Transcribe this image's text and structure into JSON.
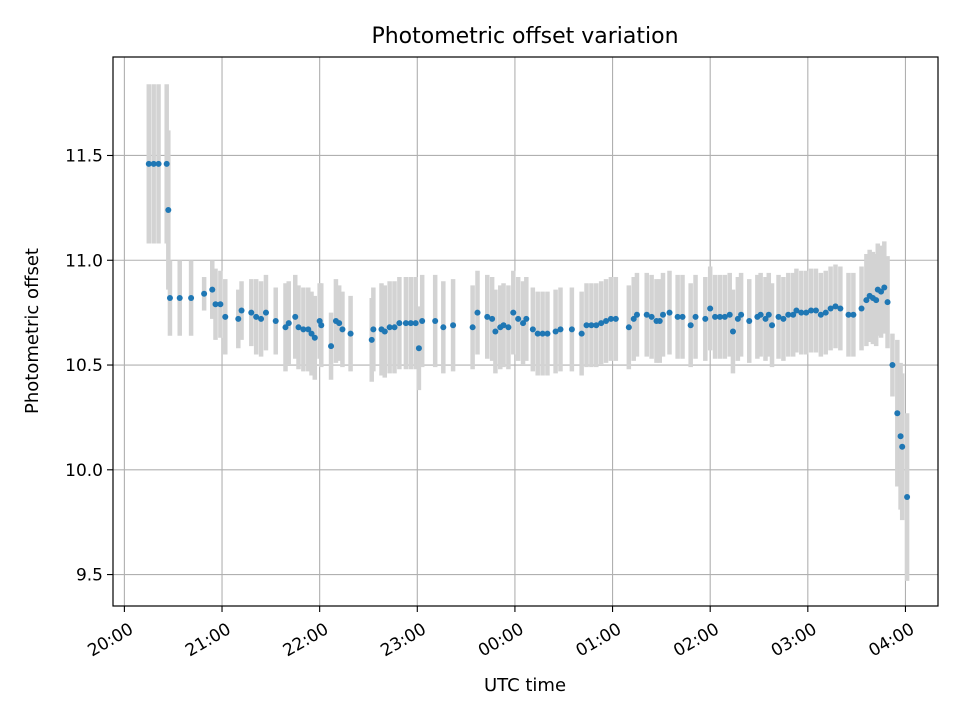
{
  "chart_data": {
    "type": "scatter",
    "title": "Photometric offset variation",
    "xlabel": "UTC time",
    "ylabel": "Photometric offset",
    "x_unit": "UTC time, 20:00 → 04:00 next day",
    "xlim": [
      "19:53",
      "04:20"
    ],
    "ylim": [
      9.35,
      11.97
    ],
    "xticks": [
      "20:00",
      "21:00",
      "22:00",
      "23:00",
      "00:00",
      "01:00",
      "02:00",
      "03:00",
      "04:00"
    ],
    "yticks": [
      "9.5",
      "10.0",
      "10.5",
      "11.0",
      "11.5"
    ],
    "grid": true,
    "marker_color": "#1f77b4",
    "errorbar_color": "#d3d3d3",
    "series": [
      {
        "points": [
          {
            "x": "20:15",
            "y": 11.46,
            "err": 0.38
          },
          {
            "x": "20:18",
            "y": 11.46,
            "err": 0.38
          },
          {
            "x": "20:21",
            "y": 11.46,
            "err": 0.38
          },
          {
            "x": "20:26",
            "y": 11.46,
            "err": 0.38
          },
          {
            "x": "20:27",
            "y": 11.24,
            "err": 0.38
          },
          {
            "x": "20:28",
            "y": 10.82,
            "err": 0.18
          },
          {
            "x": "20:34",
            "y": 10.82,
            "err": 0.18
          },
          {
            "x": "20:41",
            "y": 10.82,
            "err": 0.18
          },
          {
            "x": "20:49",
            "y": 10.84,
            "err": 0.08
          },
          {
            "x": "20:54",
            "y": 10.86,
            "err": 0.14
          },
          {
            "x": "20:56",
            "y": 10.79,
            "err": 0.17
          },
          {
            "x": "20:59",
            "y": 10.79,
            "err": 0.16
          },
          {
            "x": "21:02",
            "y": 10.73,
            "err": 0.18
          },
          {
            "x": "21:10",
            "y": 10.72,
            "err": 0.14
          },
          {
            "x": "21:12",
            "y": 10.76,
            "err": 0.14
          },
          {
            "x": "21:18",
            "y": 10.75,
            "err": 0.16
          },
          {
            "x": "21:21",
            "y": 10.73,
            "err": 0.18
          },
          {
            "x": "21:24",
            "y": 10.72,
            "err": 0.18
          },
          {
            "x": "21:27",
            "y": 10.75,
            "err": 0.18
          },
          {
            "x": "21:33",
            "y": 10.71,
            "err": 0.16
          },
          {
            "x": "21:39",
            "y": 10.68,
            "err": 0.21
          },
          {
            "x": "21:41",
            "y": 10.7,
            "err": 0.2
          },
          {
            "x": "21:45",
            "y": 10.73,
            "err": 0.2
          },
          {
            "x": "21:47",
            "y": 10.68,
            "err": 0.2
          },
          {
            "x": "21:50",
            "y": 10.67,
            "err": 0.2
          },
          {
            "x": "21:53",
            "y": 10.67,
            "err": 0.2
          },
          {
            "x": "21:55",
            "y": 10.65,
            "err": 0.2
          },
          {
            "x": "21:57",
            "y": 10.63,
            "err": 0.2
          },
          {
            "x": "22:00",
            "y": 10.71,
            "err": 0.18
          },
          {
            "x": "22:01",
            "y": 10.69,
            "err": 0.2
          },
          {
            "x": "22:07",
            "y": 10.59,
            "err": 0.16
          },
          {
            "x": "22:10",
            "y": 10.71,
            "err": 0.2
          },
          {
            "x": "22:12",
            "y": 10.7,
            "err": 0.18
          },
          {
            "x": "22:14",
            "y": 10.67,
            "err": 0.18
          },
          {
            "x": "22:19",
            "y": 10.65,
            "err": 0.18
          },
          {
            "x": "22:32",
            "y": 10.62,
            "err": 0.2
          },
          {
            "x": "22:33",
            "y": 10.67,
            "err": 0.2
          },
          {
            "x": "22:38",
            "y": 10.67,
            "err": 0.22
          },
          {
            "x": "22:40",
            "y": 10.66,
            "err": 0.22
          },
          {
            "x": "22:43",
            "y": 10.68,
            "err": 0.22
          },
          {
            "x": "22:46",
            "y": 10.68,
            "err": 0.22
          },
          {
            "x": "22:49",
            "y": 10.7,
            "err": 0.22
          },
          {
            "x": "22:53",
            "y": 10.7,
            "err": 0.22
          },
          {
            "x": "22:56",
            "y": 10.7,
            "err": 0.22
          },
          {
            "x": "22:59",
            "y": 10.7,
            "err": 0.22
          },
          {
            "x": "23:01",
            "y": 10.58,
            "err": 0.2
          },
          {
            "x": "23:03",
            "y": 10.71,
            "err": 0.22
          },
          {
            "x": "23:11",
            "y": 10.71,
            "err": 0.22
          },
          {
            "x": "23:16",
            "y": 10.68,
            "err": 0.22
          },
          {
            "x": "23:22",
            "y": 10.69,
            "err": 0.22
          },
          {
            "x": "23:34",
            "y": 10.68,
            "err": 0.2
          },
          {
            "x": "23:37",
            "y": 10.75,
            "err": 0.2
          },
          {
            "x": "23:43",
            "y": 10.73,
            "err": 0.2
          },
          {
            "x": "23:46",
            "y": 10.72,
            "err": 0.2
          },
          {
            "x": "23:48",
            "y": 10.66,
            "err": 0.2
          },
          {
            "x": "23:51",
            "y": 10.68,
            "err": 0.2
          },
          {
            "x": "23:53",
            "y": 10.69,
            "err": 0.2
          },
          {
            "x": "23:56",
            "y": 10.68,
            "err": 0.2
          },
          {
            "x": "23:59",
            "y": 10.75,
            "err": 0.2
          },
          {
            "x": "00:02",
            "y": 10.72,
            "err": 0.2
          },
          {
            "x": "00:05",
            "y": 10.7,
            "err": 0.2
          },
          {
            "x": "00:07",
            "y": 10.72,
            "err": 0.2
          },
          {
            "x": "00:11",
            "y": 10.67,
            "err": 0.2
          },
          {
            "x": "00:14",
            "y": 10.65,
            "err": 0.2
          },
          {
            "x": "00:17",
            "y": 10.65,
            "err": 0.2
          },
          {
            "x": "00:20",
            "y": 10.65,
            "err": 0.2
          },
          {
            "x": "00:25",
            "y": 10.66,
            "err": 0.2
          },
          {
            "x": "00:28",
            "y": 10.67,
            "err": 0.2
          },
          {
            "x": "00:35",
            "y": 10.67,
            "err": 0.2
          },
          {
            "x": "00:41",
            "y": 10.65,
            "err": 0.2
          },
          {
            "x": "00:44",
            "y": 10.69,
            "err": 0.2
          },
          {
            "x": "00:47",
            "y": 10.69,
            "err": 0.2
          },
          {
            "x": "00:50",
            "y": 10.69,
            "err": 0.2
          },
          {
            "x": "00:53",
            "y": 10.7,
            "err": 0.2
          },
          {
            "x": "00:56",
            "y": 10.71,
            "err": 0.2
          },
          {
            "x": "00:59",
            "y": 10.72,
            "err": 0.2
          },
          {
            "x": "01:02",
            "y": 10.72,
            "err": 0.2
          },
          {
            "x": "01:10",
            "y": 10.68,
            "err": 0.2
          },
          {
            "x": "01:13",
            "y": 10.72,
            "err": 0.2
          },
          {
            "x": "01:15",
            "y": 10.74,
            "err": 0.2
          },
          {
            "x": "01:21",
            "y": 10.74,
            "err": 0.2
          },
          {
            "x": "01:24",
            "y": 10.73,
            "err": 0.2
          },
          {
            "x": "01:27",
            "y": 10.71,
            "err": 0.2
          },
          {
            "x": "01:29",
            "y": 10.71,
            "err": 0.2
          },
          {
            "x": "01:31",
            "y": 10.74,
            "err": 0.2
          },
          {
            "x": "01:35",
            "y": 10.75,
            "err": 0.2
          },
          {
            "x": "01:40",
            "y": 10.73,
            "err": 0.2
          },
          {
            "x": "01:43",
            "y": 10.73,
            "err": 0.2
          },
          {
            "x": "01:48",
            "y": 10.69,
            "err": 0.2
          },
          {
            "x": "01:51",
            "y": 10.73,
            "err": 0.2
          },
          {
            "x": "01:57",
            "y": 10.72,
            "err": 0.2
          },
          {
            "x": "02:00",
            "y": 10.77,
            "err": 0.2
          },
          {
            "x": "02:03",
            "y": 10.73,
            "err": 0.2
          },
          {
            "x": "02:06",
            "y": 10.73,
            "err": 0.2
          },
          {
            "x": "02:09",
            "y": 10.73,
            "err": 0.2
          },
          {
            "x": "02:12",
            "y": 10.74,
            "err": 0.2
          },
          {
            "x": "02:14",
            "y": 10.66,
            "err": 0.2
          },
          {
            "x": "02:17",
            "y": 10.72,
            "err": 0.2
          },
          {
            "x": "02:19",
            "y": 10.74,
            "err": 0.2
          },
          {
            "x": "02:24",
            "y": 10.71,
            "err": 0.2
          },
          {
            "x": "02:29",
            "y": 10.73,
            "err": 0.2
          },
          {
            "x": "02:31",
            "y": 10.74,
            "err": 0.2
          },
          {
            "x": "02:34",
            "y": 10.72,
            "err": 0.2
          },
          {
            "x": "02:36",
            "y": 10.74,
            "err": 0.2
          },
          {
            "x": "02:38",
            "y": 10.69,
            "err": 0.2
          },
          {
            "x": "02:42",
            "y": 10.73,
            "err": 0.2
          },
          {
            "x": "02:45",
            "y": 10.72,
            "err": 0.2
          },
          {
            "x": "02:48",
            "y": 10.74,
            "err": 0.2
          },
          {
            "x": "02:51",
            "y": 10.74,
            "err": 0.2
          },
          {
            "x": "02:53",
            "y": 10.76,
            "err": 0.2
          },
          {
            "x": "02:56",
            "y": 10.75,
            "err": 0.2
          },
          {
            "x": "02:59",
            "y": 10.75,
            "err": 0.2
          },
          {
            "x": "03:02",
            "y": 10.76,
            "err": 0.2
          },
          {
            "x": "03:05",
            "y": 10.76,
            "err": 0.2
          },
          {
            "x": "03:08",
            "y": 10.74,
            "err": 0.2
          },
          {
            "x": "03:11",
            "y": 10.75,
            "err": 0.2
          },
          {
            "x": "03:14",
            "y": 10.77,
            "err": 0.2
          },
          {
            "x": "03:17",
            "y": 10.78,
            "err": 0.2
          },
          {
            "x": "03:20",
            "y": 10.77,
            "err": 0.2
          },
          {
            "x": "03:25",
            "y": 10.74,
            "err": 0.2
          },
          {
            "x": "03:28",
            "y": 10.74,
            "err": 0.2
          },
          {
            "x": "03:33",
            "y": 10.77,
            "err": 0.2
          },
          {
            "x": "03:36",
            "y": 10.81,
            "err": 0.22
          },
          {
            "x": "03:38",
            "y": 10.83,
            "err": 0.22
          },
          {
            "x": "03:40",
            "y": 10.82,
            "err": 0.22
          },
          {
            "x": "03:42",
            "y": 10.81,
            "err": 0.22
          },
          {
            "x": "03:43",
            "y": 10.86,
            "err": 0.22
          },
          {
            "x": "03:45",
            "y": 10.85,
            "err": 0.22
          },
          {
            "x": "03:47",
            "y": 10.87,
            "err": 0.22
          },
          {
            "x": "03:49",
            "y": 10.8,
            "err": 0.22
          },
          {
            "x": "03:52",
            "y": 10.5,
            "err": 0.15
          },
          {
            "x": "03:55",
            "y": 10.27,
            "err": 0.35
          },
          {
            "x": "03:57",
            "y": 10.16,
            "err": 0.35
          },
          {
            "x": "03:58",
            "y": 10.11,
            "err": 0.35
          },
          {
            "x": "04:01",
            "y": 9.87,
            "err": 0.4
          }
        ]
      }
    ]
  }
}
